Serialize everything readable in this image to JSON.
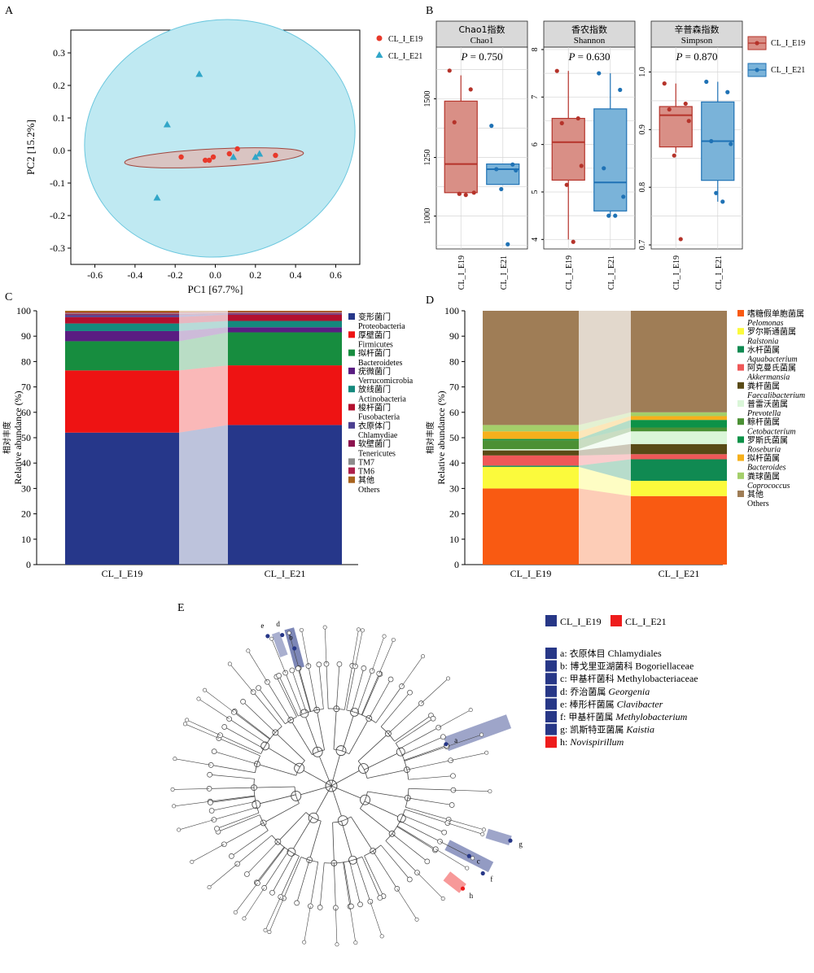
{
  "colors": {
    "e19": "#e8392b",
    "e21": "#31a6c8",
    "e19_box": "#b5332a",
    "e21_box": "#1f72b5",
    "lefse_e19": "#273787",
    "lefse_e21": "#ee1c1c"
  },
  "chart_data": [
    {
      "panel": "A",
      "type": "scatter",
      "xlabel": "PC1 [67.7%]",
      "ylabel": "PC2 [15.2%]",
      "xlim": [
        -0.72,
        0.72
      ],
      "ylim": [
        -0.35,
        0.37
      ],
      "xticks": [
        "-0.6",
        "-0.4",
        "-0.2",
        "0.0",
        "0.2",
        "0.4",
        "0.6"
      ],
      "yticks": [
        "-0.3",
        "-0.2",
        "-0.1",
        "0.0",
        "0.1",
        "0.2",
        "0.3"
      ],
      "legend_position": "top-right",
      "series": [
        {
          "name": "CL_I_E19",
          "marker": "circle",
          "points": [
            [
              -0.17,
              -0.02
            ],
            [
              -0.05,
              -0.03
            ],
            [
              -0.03,
              -0.03
            ],
            [
              -0.01,
              -0.02
            ],
            [
              0.07,
              -0.01
            ],
            [
              0.11,
              0.005
            ],
            [
              0.3,
              -0.015
            ]
          ]
        },
        {
          "name": "CL_I_E21",
          "marker": "triangle",
          "points": [
            [
              -0.08,
              0.235
            ],
            [
              -0.24,
              0.08
            ],
            [
              -0.29,
              -0.145
            ],
            [
              0.09,
              -0.02
            ],
            [
              0.2,
              -0.02
            ],
            [
              0.22,
              -0.01
            ]
          ]
        }
      ]
    },
    {
      "panel": "B",
      "type": "box",
      "legend": [
        "CL_I_E19",
        "CL_I_E21"
      ],
      "legend_position": "right",
      "facets": [
        {
          "title_cn": "Chao1指数",
          "title_en": "Chao1",
          "pvalue": "P = 0.750",
          "ylim": [
            860,
            1720
          ],
          "yticks": [
            "1000",
            "1250",
            "1500"
          ],
          "groups": [
            {
              "name": "CL_I_E19",
              "q1": 1100,
              "median": 1222,
              "q3": 1490,
              "whisker_low": 1090,
              "whisker_high": 1600,
              "points": [
                1620,
                1540,
                1400,
                1100,
                1095,
                1090
              ]
            },
            {
              "name": "CL_I_E21",
              "q1": 1135,
              "median": 1200,
              "q3": 1222,
              "whisker_low": 1135,
              "whisker_high": 1222,
              "points": [
                1385,
                1220,
                1200,
                1195,
                1115,
                880
              ]
            }
          ]
        },
        {
          "title_cn": "香农指数",
          "title_en": "Shannon",
          "pvalue": "P = 0.630",
          "ylim": [
            3.8,
            8.05
          ],
          "yticks": [
            "4",
            "5",
            "6",
            "7",
            "8"
          ],
          "groups": [
            {
              "name": "CL_I_E19",
              "q1": 5.25,
              "median": 6.05,
              "q3": 6.55,
              "whisker_low": 4.0,
              "whisker_high": 7.55,
              "points": [
                7.55,
                6.55,
                6.45,
                5.55,
                5.15,
                3.95
              ]
            },
            {
              "name": "CL_I_E21",
              "q1": 4.6,
              "median": 5.2,
              "q3": 6.75,
              "whisker_low": 4.5,
              "whisker_high": 7.5,
              "points": [
                7.5,
                7.15,
                5.5,
                4.9,
                4.5,
                4.5
              ]
            }
          ]
        },
        {
          "title_cn": "辛普森指数",
          "title_en": "Simpson",
          "pvalue": "P = 0.870",
          "ylim": [
            0.693,
            1.043
          ],
          "yticks": [
            "0.7",
            "0.8",
            "0.9",
            "1.0"
          ],
          "groups": [
            {
              "name": "CL_I_E19",
              "q1": 0.87,
              "median": 0.925,
              "q3": 0.94,
              "whisker_low": 0.86,
              "whisker_high": 0.98,
              "points": [
                0.98,
                0.945,
                0.935,
                0.915,
                0.855,
                0.71
              ]
            },
            {
              "name": "CL_I_E21",
              "q1": 0.812,
              "median": 0.88,
              "q3": 0.948,
              "whisker_low": 0.775,
              "whisker_high": 0.983,
              "points": [
                0.983,
                0.965,
                0.88,
                0.875,
                0.79,
                0.775
              ]
            }
          ]
        }
      ]
    },
    {
      "panel": "C",
      "type": "bar",
      "stacked": true,
      "categories": [
        "CL_I_E19",
        "CL_I_E21"
      ],
      "ylabel_cn": "相对丰度",
      "ylabel": "Relative abundance (%)",
      "ylim": [
        0,
        100
      ],
      "yticks": [
        "0",
        "10",
        "20",
        "30",
        "40",
        "50",
        "60",
        "70",
        "80",
        "90",
        "100"
      ],
      "legend_position": "right",
      "series": [
        {
          "name_cn": "变形菌门",
          "name": "Proteobacteria",
          "color": "#26378a",
          "values": [
            52.0,
            55.0
          ]
        },
        {
          "name_cn": "厚壁菌门",
          "name": "Firmicutes",
          "color": "#ee1313",
          "values": [
            24.5,
            23.5
          ]
        },
        {
          "name_cn": "拟杆菌门",
          "name": "Bacteroidetes",
          "color": "#178d3f",
          "values": [
            11.5,
            13.0
          ]
        },
        {
          "name_cn": "疣微菌门",
          "name": "Verrucomicrobia",
          "color": "#5a1d82",
          "values": [
            4.0,
            2.0
          ]
        },
        {
          "name_cn": "放线菌门",
          "name": "Actinobacteria",
          "color": "#14897d",
          "values": [
            3.0,
            2.5
          ]
        },
        {
          "name_cn": "梭杆菌门",
          "name": "Fusobacteria",
          "color": "#b3102e",
          "values": [
            2.5,
            2.5
          ]
        },
        {
          "name_cn": "衣原体门",
          "name": "Chlamydiae",
          "color": "#4b3f91",
          "values": [
            0.8,
            0.3
          ]
        },
        {
          "name_cn": "软壁菌门",
          "name": "Tenericutes",
          "color": "#8c124e",
          "values": [
            0.4,
            0.3
          ]
        },
        {
          "name_cn": "",
          "name": "TM7",
          "color": "#8c8c8c",
          "values": [
            0.3,
            0.2
          ]
        },
        {
          "name_cn": "",
          "name": "TM6",
          "color": "#ad1f4a",
          "values": [
            0.3,
            0.2
          ]
        },
        {
          "name_cn": "其他",
          "name": "Others",
          "color": "#a8631d",
          "values": [
            0.7,
            0.5
          ]
        }
      ]
    },
    {
      "panel": "D",
      "type": "bar",
      "stacked": true,
      "categories": [
        "CL_I_E19",
        "CL_I_E21"
      ],
      "ylabel_cn": "相对丰度",
      "ylabel": "Relative abundance (%)",
      "ylim": [
        0,
        100
      ],
      "yticks": [
        "0",
        "10",
        "20",
        "30",
        "40",
        "50",
        "60",
        "70",
        "80",
        "90",
        "100"
      ],
      "legend_position": "right",
      "series": [
        {
          "name_cn": "嗜糖假单胞菌属",
          "name": "Pelomonas",
          "italic": true,
          "color": "#f95a12",
          "values": [
            30.0,
            27.0
          ]
        },
        {
          "name_cn": "罗尔斯通菌属",
          "name": "Ralstonia",
          "italic": true,
          "color": "#fbfa3c",
          "values": [
            8.5,
            6.0
          ]
        },
        {
          "name_cn": "水杆菌属",
          "name": "Aquabacterium",
          "italic": true,
          "color": "#108a52",
          "values": [
            0.5,
            8.5
          ]
        },
        {
          "name_cn": "阿克曼氏菌属",
          "name": "Akkermansia",
          "italic": true,
          "color": "#ef5858",
          "values": [
            4.0,
            2.0
          ]
        },
        {
          "name_cn": "粪杆菌属",
          "name": "Faecalibacterium",
          "italic": true,
          "color": "#594a16",
          "values": [
            2.0,
            4.0
          ]
        },
        {
          "name_cn": "普雷沃菌属",
          "name": "Prevotella",
          "italic": true,
          "color": "#daf6d8",
          "values": [
            0.5,
            5.0
          ]
        },
        {
          "name_cn": "鲸杆菌属",
          "name": "Cetobacterium",
          "italic": true,
          "color": "#4b9034",
          "values": [
            3.5,
            1.5
          ]
        },
        {
          "name_cn": "罗斯氏菌属",
          "name": "Roseburia",
          "italic": true,
          "color": "#0d9248",
          "values": [
            0.5,
            3.0
          ]
        },
        {
          "name_cn": "拟杆菌属",
          "name": "Bacteroides",
          "italic": true,
          "color": "#f6b01c",
          "values": [
            3.0,
            1.5
          ]
        },
        {
          "name_cn": "粪球菌属",
          "name": "Coprococcus",
          "italic": true,
          "color": "#a4cf6a",
          "values": [
            2.5,
            1.5
          ]
        },
        {
          "name_cn": "其他",
          "name": "Others",
          "italic": false,
          "color": "#9f7d56",
          "values": [
            45.0,
            40.0
          ]
        }
      ]
    },
    {
      "panel": "E",
      "type": "cladogram",
      "legend_groups": [
        "CL_I_E19",
        "CL_I_E21"
      ],
      "taxa": [
        {
          "key": "a",
          "name_cn": "衣原体目",
          "name": "Chlamydiales",
          "italic": false,
          "group": "CL_I_E19"
        },
        {
          "key": "b",
          "name_cn": "博戈里亚湖菌科",
          "name": "Bogoriellaceae",
          "italic": false,
          "group": "CL_I_E19"
        },
        {
          "key": "c",
          "name_cn": "甲基杆菌科",
          "name": "Methylobacteriaceae",
          "italic": false,
          "group": "CL_I_E19"
        },
        {
          "key": "d",
          "name_cn": "乔治菌属",
          "name": "Georgenia",
          "italic": true,
          "group": "CL_I_E19"
        },
        {
          "key": "e",
          "name_cn": "棒形杆菌属",
          "name": "Clavibacter",
          "italic": true,
          "group": "CL_I_E19"
        },
        {
          "key": "f",
          "name_cn": "甲基杆菌属",
          "name": "Methylobacterium",
          "italic": true,
          "group": "CL_I_E19"
        },
        {
          "key": "g",
          "name_cn": "凯斯特亚菌属",
          "name": "Kaistia",
          "italic": true,
          "group": "CL_I_E19"
        },
        {
          "key": "h",
          "name_cn": "",
          "name": "Novispirillum",
          "italic": true,
          "group": "CL_I_E21"
        }
      ]
    }
  ],
  "panel_labels": {
    "a": "A",
    "b": "B",
    "c": "C",
    "d": "D",
    "e": "E"
  }
}
